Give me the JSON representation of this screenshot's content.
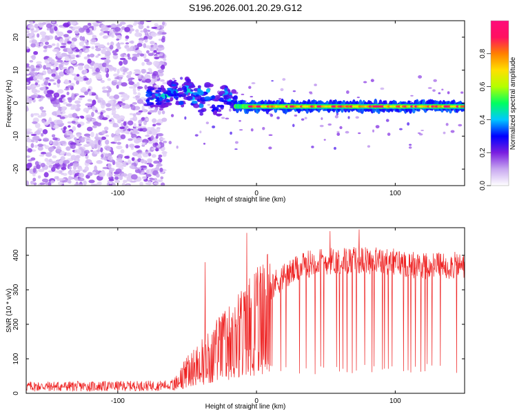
{
  "title": "S196.2026.001.20.29.G12",
  "chart_data": [
    {
      "type": "heatmap",
      "name": "spectrogram",
      "xlabel": "Height of straight line (km)",
      "ylabel": "Frequency (Hz)",
      "xlim": [
        -166,
        150
      ],
      "ylim": [
        -25,
        25
      ],
      "xticks": [
        -100,
        0,
        100
      ],
      "yticks": [
        -20,
        -10,
        0,
        10,
        20
      ],
      "regions": [
        {
          "x_range": [
            -166,
            -66
          ],
          "description": "noise",
          "amplitude_range": [
            0.05,
            0.2
          ]
        },
        {
          "x_range": [
            -79,
            -15
          ],
          "description": "emerging signal",
          "freq_center_hz": 2,
          "amplitude_range": [
            0.2,
            0.5
          ]
        },
        {
          "x_range": [
            -15,
            150
          ],
          "description": "strong carrier",
          "freq_center_hz": -1,
          "amplitude_range": [
            0.4,
            0.95
          ]
        }
      ],
      "colorbar": {
        "label": "Normalized spectral amplitude",
        "range": [
          0,
          1
        ],
        "ticks": [
          "0.0",
          "0.2",
          "0.4",
          "0.6",
          "0.8"
        ],
        "colors": [
          "#ffffff",
          "#c8a8f0",
          "#7a1ee0",
          "#0000ff",
          "#00c8ff",
          "#00ff60",
          "#b4ff00",
          "#ffe000",
          "#ff8000",
          "#ff1060",
          "#ff0a7a"
        ]
      }
    },
    {
      "type": "line",
      "name": "snr",
      "xlabel": "Height of straight line (km)",
      "ylabel": "SNR (10 * v/v)",
      "xlim": [
        -166,
        150
      ],
      "ylim": [
        0,
        480
      ],
      "xticks": [
        -100,
        0,
        100
      ],
      "yticks": [
        0,
        100,
        200,
        300,
        400
      ],
      "color": "#ee2222",
      "trend_x": [
        -166,
        -120,
        -70,
        -62,
        -57,
        -50,
        -40,
        -30,
        -20,
        -10,
        -5,
        0,
        5,
        10,
        20,
        30,
        40,
        60,
        80,
        100,
        120,
        150
      ],
      "trend_y": [
        20,
        20,
        22,
        25,
        45,
        80,
        110,
        150,
        180,
        220,
        240,
        260,
        280,
        310,
        340,
        360,
        380,
        385,
        385,
        380,
        370,
        370
      ],
      "spikes": [
        {
          "x": -37,
          "y": 380
        },
        {
          "x": -7,
          "y": 465
        },
        {
          "x": 53,
          "y": 470
        },
        {
          "x": 74,
          "y": 475
        }
      ],
      "dips_to": 55
    }
  ]
}
